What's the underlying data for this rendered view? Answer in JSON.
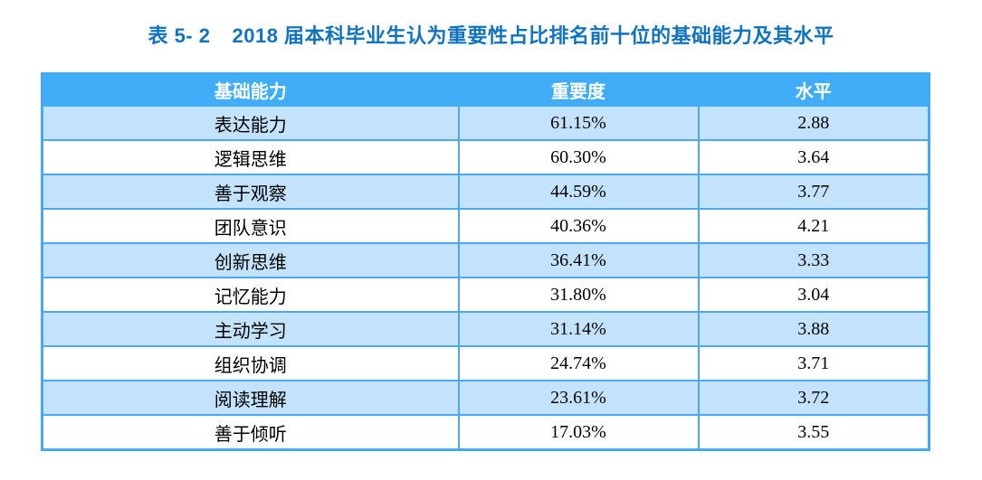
{
  "title": {
    "table_label": "表 5- 2",
    "text": "2018 届本科毕业生认为重要性占比排名前十位的基础能力及其水平"
  },
  "table": {
    "headers": [
      "基础能力",
      "重要度",
      "水平"
    ],
    "rows": [
      {
        "ability": "表达能力",
        "importance": "61.15%",
        "level": "2.88"
      },
      {
        "ability": "逻辑思维",
        "importance": "60.30%",
        "level": "3.64"
      },
      {
        "ability": "善于观察",
        "importance": "44.59%",
        "level": "3.77"
      },
      {
        "ability": "团队意识",
        "importance": "40.36%",
        "level": "4.21"
      },
      {
        "ability": "创新思维",
        "importance": "36.41%",
        "level": "3.33"
      },
      {
        "ability": "记忆能力",
        "importance": "31.80%",
        "level": "3.04"
      },
      {
        "ability": "主动学习",
        "importance": "31.14%",
        "level": "3.88"
      },
      {
        "ability": "组织协调",
        "importance": "24.74%",
        "level": "3.71"
      },
      {
        "ability": "阅读理解",
        "importance": "23.61%",
        "level": "3.72"
      },
      {
        "ability": "善于倾听",
        "importance": "17.03%",
        "level": "3.55"
      }
    ]
  },
  "colors": {
    "title_text": "#1173BD",
    "header_bg": "#41ACF8",
    "header_text": "#FFFFFF",
    "row_alt_bg": "#C3E3FC",
    "row_bg": "#FFFFFF",
    "border": "#4AA7F0",
    "cell_text": "#000000"
  }
}
